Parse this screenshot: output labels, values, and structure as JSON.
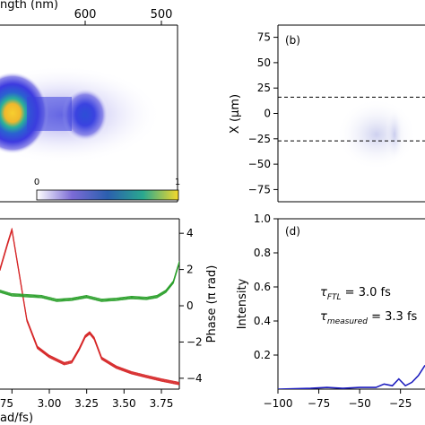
{
  "chart_data": [
    {
      "panel": "top-left",
      "type": "heatmap",
      "xlabel": "ngth (nm)",
      "x_ticks": [
        "600",
        "500"
      ],
      "colorbar": {
        "min_label": "0",
        "max_label": "1"
      }
    },
    {
      "panel": "top-right",
      "type": "heatmap",
      "panel_label": "(b)",
      "ylabel": "X (μm)",
      "y_ticks": [
        75,
        50,
        25,
        0,
        -25,
        -50,
        -75
      ],
      "ylim": [
        -87,
        87
      ],
      "dashed_lines_y": [
        16,
        -27
      ]
    },
    {
      "panel": "bottom-left",
      "type": "line",
      "xlabel": "ad/fs)",
      "x_ticks": [
        "75",
        "3.00",
        "3.25",
        "3.50",
        "3.75"
      ],
      "xlim": [
        2.67,
        3.87
      ],
      "ylabel_right": "Phase (π rad)",
      "y_ticks_right": [
        4,
        2,
        0,
        -2,
        -4
      ],
      "ylim_right": [
        -4.6,
        4.8
      ],
      "series": [
        {
          "color": "#d62728",
          "x": [
            2.67,
            2.72,
            2.75,
            2.79,
            2.85,
            2.92,
            3.0,
            3.1,
            3.15,
            3.2,
            3.24,
            3.27,
            3.3,
            3.35,
            3.45,
            3.55,
            3.65,
            3.75,
            3.87
          ],
          "y": [
            2.0,
            3.4,
            4.2,
            2.2,
            -0.8,
            -2.3,
            -2.8,
            -3.2,
            -3.1,
            -2.4,
            -1.7,
            -1.5,
            -1.8,
            -2.9,
            -3.4,
            -3.7,
            -3.9,
            -4.1,
            -4.3
          ]
        },
        {
          "color": "#2ca02c",
          "x": [
            2.67,
            2.75,
            2.85,
            2.95,
            3.05,
            3.15,
            3.25,
            3.35,
            3.45,
            3.55,
            3.65,
            3.72,
            3.78,
            3.83,
            3.87
          ],
          "y": [
            0.8,
            0.6,
            0.55,
            0.5,
            0.3,
            0.35,
            0.5,
            0.3,
            0.35,
            0.45,
            0.4,
            0.5,
            0.8,
            1.3,
            2.4
          ]
        }
      ]
    },
    {
      "panel": "bottom-right",
      "type": "line",
      "panel_label": "(d)",
      "ylabel": "Intensity",
      "y_ticks": [
        "1.0",
        "0.8",
        "0.6",
        "0.4",
        "0.2"
      ],
      "x_ticks": [
        "−100",
        "−75",
        "−50",
        "−25"
      ],
      "xlim": [
        -100,
        -10
      ],
      "ylim": [
        0,
        1.0
      ],
      "annotations": [
        "τ_FTL = 3.0 fs",
        "τ_measured = 3.3 fs"
      ],
      "series": [
        {
          "color": "#1f1fbf",
          "x": [
            -100,
            -80,
            -70,
            -60,
            -50,
            -40,
            -35,
            -30,
            -26,
            -22,
            -18,
            -14,
            -10
          ],
          "y": [
            0.0,
            0.005,
            0.01,
            0.005,
            0.01,
            0.01,
            0.03,
            0.02,
            0.06,
            0.02,
            0.04,
            0.08,
            0.14
          ]
        }
      ]
    }
  ]
}
